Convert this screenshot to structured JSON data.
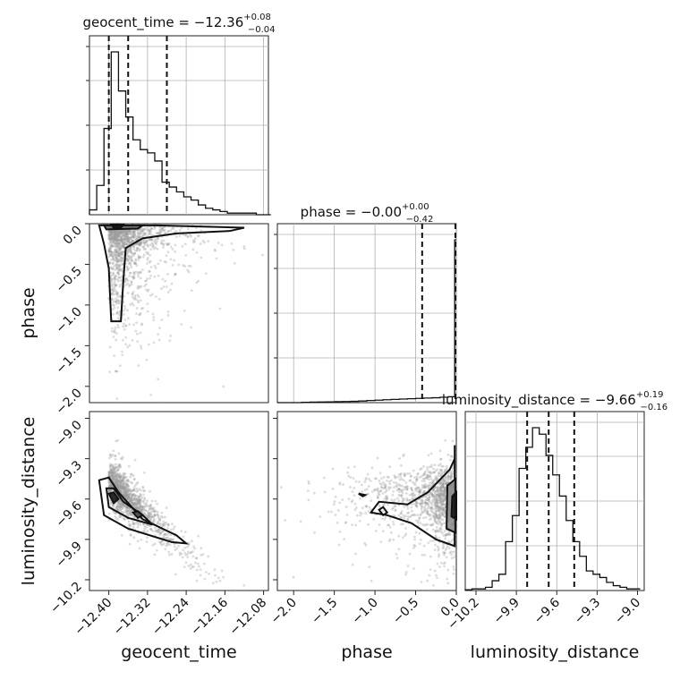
{
  "chart_data": {
    "type": "corner",
    "parameters": [
      {
        "name": "geocent_time",
        "axis_label": "geocent_time",
        "title": {
          "base": "geocent_time = −12.36",
          "plus": "+0.08",
          "minus": "−0.04"
        },
        "range": [
          -12.44,
          -12.07
        ],
        "ticks": [
          -12.4,
          -12.32,
          -12.24,
          -12.16,
          -12.08
        ],
        "tick_labels": [
          "−12.40",
          "−12.32",
          "−12.24",
          "−12.16",
          "−12.08"
        ],
        "quantiles": [
          -12.4,
          -12.36,
          -12.28
        ],
        "hist_bins": [
          -12.44,
          -12.425,
          -12.41,
          -12.395,
          -12.38,
          -12.365,
          -12.35,
          -12.335,
          -12.32,
          -12.305,
          -12.29,
          -12.275,
          -12.26,
          -12.245,
          -12.23,
          -12.215,
          -12.2,
          -12.185,
          -12.17,
          -12.155,
          -12.14,
          -12.125,
          -12.11,
          -12.095,
          -12.08,
          -12.065
        ],
        "hist_counts": [
          3,
          18,
          53,
          100,
          76,
          60,
          46,
          40,
          38,
          33,
          20,
          17,
          14,
          11,
          9,
          6,
          4,
          3,
          2,
          1,
          1,
          1,
          1,
          0,
          0
        ]
      },
      {
        "name": "phase",
        "axis_label": "phase",
        "title": {
          "base": "phase = −0.00",
          "plus": "+0.00",
          "minus": "−0.42"
        },
        "range": [
          -2.2,
          0.0
        ],
        "ticks": [
          -2.0,
          -1.5,
          -1.0,
          -0.5,
          0.0
        ],
        "tick_labels": [
          "−2.0",
          "−1.5",
          "−1.0",
          "−0.5",
          "0.0"
        ],
        "quantiles": [
          -0.42,
          -0.0,
          0.0
        ],
        "hist_bins": [
          -2.2,
          -2.1,
          -2.0,
          -1.9,
          -1.8,
          -1.7,
          -1.6,
          -1.5,
          -1.4,
          -1.3,
          -1.2,
          -1.1,
          -1.0,
          -0.9,
          -0.8,
          -0.7,
          -0.6,
          -0.5,
          -0.4,
          -0.3,
          -0.2,
          -0.1,
          -0.02,
          0.0
        ],
        "hist_counts": [
          0,
          0,
          0,
          0.2,
          0.3,
          0.4,
          0.5,
          0.6,
          0.7,
          0.8,
          1,
          1.3,
          1.5,
          1.8,
          2,
          2.2,
          2.4,
          2.6,
          2.8,
          3,
          3.3,
          3.6,
          100
        ]
      },
      {
        "name": "luminosity_distance",
        "axis_label": "luminosity_distance",
        "title": {
          "base": "luminosity_distance = −9.66",
          "plus": "+0.19",
          "minus": "−0.16"
        },
        "range": [
          -10.28,
          -8.95
        ],
        "ticks": [
          -10.2,
          -9.9,
          -9.6,
          -9.3,
          -9.0
        ],
        "tick_labels": [
          "−10.2",
          "−9.9",
          "−9.6",
          "−9.3",
          "−9.0"
        ],
        "quantiles": [
          -9.82,
          -9.66,
          -9.47
        ],
        "hist_bins": [
          -10.28,
          -10.23,
          -10.18,
          -10.13,
          -10.08,
          -10.03,
          -9.98,
          -9.93,
          -9.88,
          -9.83,
          -9.78,
          -9.73,
          -9.68,
          -9.63,
          -9.58,
          -9.53,
          -9.48,
          -9.43,
          -9.38,
          -9.33,
          -9.28,
          -9.23,
          -9.18,
          -9.13,
          -9.08,
          -9.03,
          -8.98
        ],
        "hist_counts": [
          0.5,
          1,
          1,
          2,
          6,
          10,
          30,
          46,
          75,
          88,
          100,
          96,
          83,
          71,
          58,
          43,
          30,
          21,
          12,
          10,
          8,
          5,
          3,
          2,
          1,
          1
        ]
      }
    ],
    "grid": true
  }
}
